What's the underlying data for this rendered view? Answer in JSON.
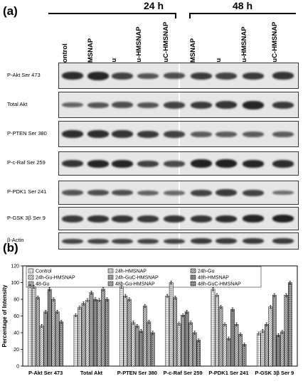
{
  "panel_a": {
    "label": "(a)",
    "time_points": [
      "24 h",
      "48 h"
    ],
    "lanes_24h": [
      "Control",
      "HMSNAP",
      "Gu",
      "Gu-HMSNAP",
      "GuC-HMSNAP"
    ],
    "lanes_48h": [
      "HMSNAP",
      "Gu",
      "Gu-HMSNAP",
      "GuC-HMSNAP"
    ],
    "blots": [
      {
        "label": "P-Akt Ser 473",
        "density": [
          0.85,
          0.9,
          0.7,
          0.55,
          0.6,
          0.75,
          0.7,
          0.75,
          0.8
        ]
      },
      {
        "label": "Total Akt",
        "density": [
          0.45,
          0.55,
          0.6,
          0.55,
          0.7,
          0.75,
          0.8,
          0.9,
          0.75
        ]
      },
      {
        "label": "P-PTEN Ser 380",
        "density": [
          0.85,
          0.85,
          0.8,
          0.75,
          0.7,
          0.5,
          0.5,
          0.5,
          0.5
        ]
      },
      {
        "label": "P-c-Raf Ser 259",
        "density": [
          0.8,
          0.9,
          0.9,
          0.7,
          0.65,
          0.95,
          0.95,
          0.9,
          0.85
        ]
      },
      {
        "label": "P-PDK1 Ser 241",
        "density": [
          0.55,
          0.6,
          0.6,
          0.45,
          0.4,
          0.7,
          0.75,
          0.7,
          0.35
        ]
      },
      {
        "label": "P-GSK 3β Ser 9",
        "density": [
          0.75,
          0.8,
          0.8,
          0.75,
          0.8,
          0.8,
          0.85,
          0.9,
          0.95
        ]
      },
      {
        "label": "β-Actin",
        "density": [
          0.7,
          0.7,
          0.7,
          0.7,
          0.7,
          0.75,
          0.75,
          0.75,
          0.75
        ]
      }
    ]
  },
  "panel_b": {
    "label": "(b)"
  },
  "chart_data": {
    "type": "bar",
    "title": "",
    "xlabel": "",
    "ylabel": "Percentage of Intensity",
    "ylim": [
      0,
      120
    ],
    "yticks": [
      0,
      20,
      40,
      60,
      80,
      100,
      120
    ],
    "legend_position": "top",
    "categories": [
      "P-Akt Ser 473",
      "Total Akt",
      "P-PTEN Ser 380",
      "P-c-Raf Ser 259",
      "P-PDK1 Ser 241",
      "P-GSK 3β Ser 9"
    ],
    "series": [
      {
        "name": "Control",
        "color": "#f2f2f2",
        "pattern": "grid",
        "values": [
          96,
          61,
          95,
          84,
          92,
          39
        ]
      },
      {
        "name": "24h-HMSNAP",
        "color": "#d9d9d9",
        "pattern": "grid",
        "values": [
          95,
          70,
          84,
          100,
          85,
          42
        ]
      },
      {
        "name": "24h-Gu",
        "color": "#bfbfbf",
        "pattern": "hatch",
        "values": [
          82,
          75,
          80,
          82,
          71,
          50
        ]
      },
      {
        "name": "24h-Gu-HMSNAP",
        "color": "#e8e8e8",
        "pattern": "hatch",
        "values": [
          48,
          79,
          52,
          51,
          50,
          71
        ]
      },
      {
        "name": "24h-GuC-HMSNAP",
        "color": "#a6a6a6",
        "pattern": "grid",
        "values": [
          65,
          88,
          48,
          61,
          33,
          85
        ]
      },
      {
        "name": "48h-HMSNAP",
        "color": "#8c8c8c",
        "pattern": "grid",
        "values": [
          92,
          80,
          42,
          65,
          68,
          37
        ]
      },
      {
        "name": "48-Gu",
        "color": "#c8c8c8",
        "pattern": "hatch",
        "values": [
          80,
          79,
          72,
          52,
          50,
          41
        ]
      },
      {
        "name": "48h-Gu-HMSNAP",
        "color": "#b3b3b3",
        "pattern": "hatch",
        "values": [
          65,
          92,
          53,
          40,
          38,
          85
        ]
      },
      {
        "name": "48h-GuC-HMSNAP",
        "color": "#999999",
        "pattern": "dots",
        "values": [
          53,
          80,
          40,
          31,
          26,
          100
        ]
      }
    ]
  }
}
